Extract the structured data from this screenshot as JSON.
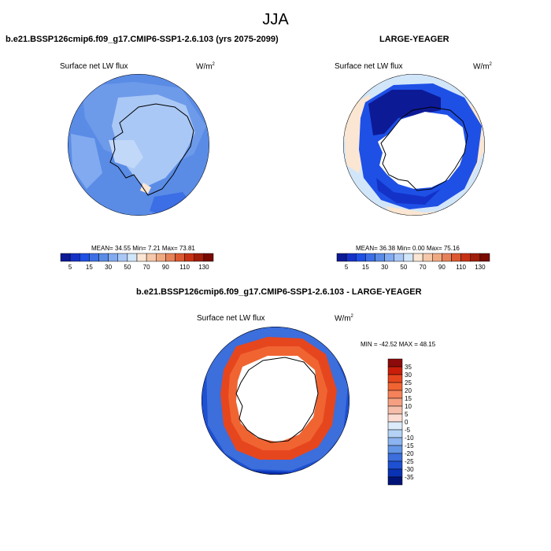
{
  "figure": {
    "season": "JJA",
    "panel_a": {
      "title": "b.e21.BSSP126cmip6.f09_g17.CMIP6-SSP1-2.6.103 (yrs 2075-2099)",
      "field": "Surface net LW flux",
      "units": "W/m",
      "units_exp": "2",
      "stats": "MEAN=  34.55  Min=   7.21  Max=  73.81"
    },
    "panel_b": {
      "title": "LARGE-YEAGER",
      "field": "Surface net LW flux",
      "units": "W/m",
      "units_exp": "2",
      "stats": "MEAN=  36.38  Min=   0.00  Max=  75.16"
    },
    "panel_c": {
      "title": "b.e21.BSSP126cmip6.f09_g17.CMIP6-SSP1-2.6.103 - LARGE-YEAGER",
      "field": "Surface net LW flux",
      "units": "W/m",
      "units_exp": "2",
      "stats": "MIN = -42.52 MAX =  48.15"
    }
  },
  "chart_data": [
    {
      "type": "heatmap",
      "projection": "south polar stereographic",
      "title": "b.e21.BSSP126cmip6.f09_g17.CMIP6-SSP1-2.6.103 (yrs 2075-2099)",
      "field": "Surface net LW flux",
      "units": "W/m2",
      "mean": 34.55,
      "min": 7.21,
      "max": 73.81,
      "colorbar_levels": [
        5,
        10,
        15,
        20,
        30,
        40,
        50,
        60,
        70,
        80,
        90,
        100,
        110,
        120,
        130
      ],
      "colorbar_tick_labels": [
        "5",
        "15",
        "30",
        "50",
        "70",
        "90",
        "110",
        "130"
      ],
      "colorbar_colors": [
        "#0d1a96",
        "#1432c8",
        "#1e50e6",
        "#3c6ee6",
        "#5a8ce6",
        "#82aaf0",
        "#aac8f5",
        "#d2e6fa",
        "#fae6d2",
        "#f5c8aa",
        "#f0aa82",
        "#e6825a",
        "#dc5a32",
        "#c83214",
        "#a01e0a",
        "#780a00"
      ],
      "dominant_value_range": [
        30,
        50
      ]
    },
    {
      "type": "heatmap",
      "projection": "south polar stereographic",
      "title": "LARGE-YEAGER",
      "field": "Surface net LW flux",
      "units": "W/m2",
      "mean": 36.38,
      "min": 0.0,
      "max": 75.16,
      "colorbar_levels": [
        5,
        10,
        15,
        20,
        30,
        40,
        50,
        60,
        70,
        80,
        90,
        100,
        110,
        120,
        130
      ],
      "colorbar_tick_labels": [
        "5",
        "15",
        "30",
        "50",
        "70",
        "90",
        "110",
        "130"
      ],
      "colorbar_colors": [
        "#0d1a96",
        "#1432c8",
        "#1e50e6",
        "#3c6ee6",
        "#5a8ce6",
        "#82aaf0",
        "#aac8f5",
        "#d2e6fa",
        "#fae6d2",
        "#f5c8aa",
        "#f0aa82",
        "#e6825a",
        "#dc5a32",
        "#c83214",
        "#a01e0a",
        "#780a00"
      ]
    },
    {
      "type": "heatmap",
      "projection": "south polar stereographic",
      "title": "b.e21.BSSP126cmip6.f09_g17.CMIP6-SSP1-2.6.103 - LARGE-YEAGER",
      "field": "Surface net LW flux",
      "units": "W/m2",
      "min": -42.52,
      "max": 48.15,
      "colorbar_levels": [
        35,
        30,
        25,
        20,
        15,
        10,
        5,
        0,
        -5,
        -10,
        -15,
        -20,
        -25,
        -30,
        -35
      ],
      "colorbar_tick_labels": [
        "35",
        "30",
        "25",
        "20",
        "15",
        "10",
        "5",
        "0",
        "-5",
        "-10",
        "-15",
        "-20",
        "-25",
        "-30",
        "-35"
      ],
      "colorbar_colors": [
        "#8c0a0a",
        "#c81e0a",
        "#e6461e",
        "#f06432",
        "#f5825a",
        "#f5a082",
        "#f5beaa",
        "#fadcd2",
        "#dcebfa",
        "#b4d2f5",
        "#8cb4f0",
        "#6496e6",
        "#3c6edc",
        "#1e50d2",
        "#0a32b4",
        "#001478"
      ]
    }
  ]
}
